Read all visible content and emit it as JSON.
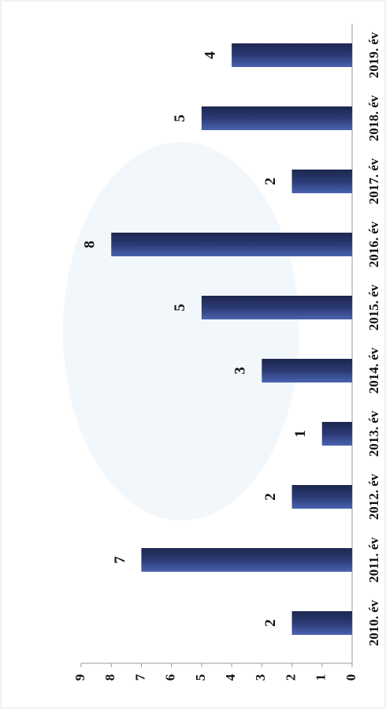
{
  "chart_data": {
    "type": "bar",
    "categories": [
      "2010. év",
      "2011. év",
      "2012. év",
      "2013. év",
      "2014. év",
      "2015. év",
      "2016. év",
      "2017. év",
      "2018. év",
      "2019. év"
    ],
    "values": [
      2,
      7,
      2,
      1,
      3,
      5,
      8,
      2,
      5,
      4
    ],
    "color": "#2b3a74",
    "ylim": [
      0,
      9
    ],
    "yticks": [
      0,
      1,
      2,
      3,
      4,
      5,
      6,
      7,
      8,
      9
    ],
    "grid": false
  }
}
